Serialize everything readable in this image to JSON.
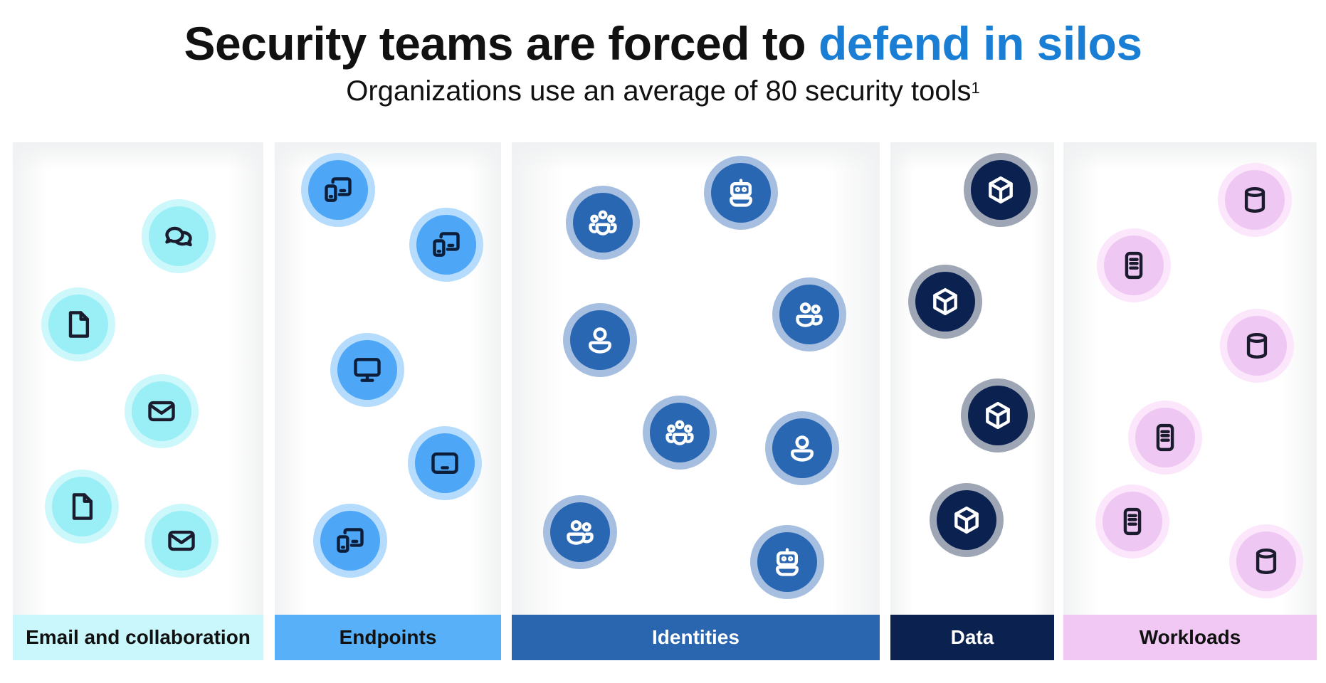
{
  "header": {
    "title_main": "Security teams are forced to",
    "title_accent": "defend in silos",
    "subtitle": "Organizations use an average of 80 security tools",
    "subtitle_sup": "1"
  },
  "columns": {
    "email": {
      "label": "Email and collaboration",
      "icons": [
        "chat-icon",
        "document-icon",
        "mail-icon",
        "document-icon",
        "mail-icon"
      ]
    },
    "endpoints": {
      "label": "Endpoints",
      "icons": [
        "devices-icon",
        "devices-icon",
        "monitor-icon",
        "tablet-icon",
        "devices-icon"
      ]
    },
    "identities": {
      "label": "Identities",
      "icons": [
        "bot-icon",
        "group-icon",
        "people-icon",
        "person-icon",
        "group-icon",
        "person-icon",
        "people-icon",
        "bot-icon"
      ]
    },
    "data": {
      "label": "Data",
      "icons": [
        "cube-icon",
        "cube-icon",
        "cube-icon",
        "cube-icon"
      ]
    },
    "workloads": {
      "label": "Workloads",
      "icons": [
        "database-icon",
        "server-icon",
        "database-icon",
        "server-icon",
        "server-icon",
        "database-icon"
      ]
    }
  },
  "colors": {
    "accent": "#1a7fd4",
    "email": "#c9f7fb",
    "endpoints": "#58b0f8",
    "identities": "#2a65b0",
    "data": "#0b2150",
    "workloads": "#f0c8f3"
  }
}
